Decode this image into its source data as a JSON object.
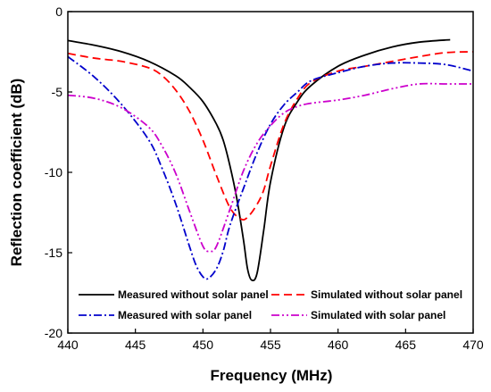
{
  "chart_data": {
    "type": "line",
    "xlabel": "Frequency (MHz)",
    "ylabel": "Reflection coefficient (dB)",
    "xlim": [
      440,
      470
    ],
    "ylim": [
      -20,
      0
    ],
    "xticks": [
      "440",
      "445",
      "450",
      "455",
      "460",
      "465",
      "470"
    ],
    "yticks": [
      "0",
      "-5",
      "-10",
      "-15",
      "-20"
    ],
    "grid": false,
    "legend_position": "bottom",
    "series": [
      {
        "name": "Measured without solar panel",
        "color": "#000000",
        "dash": "solid",
        "x": [
          440,
          442,
          444,
          446,
          448,
          449,
          450,
          451,
          451.5,
          452,
          452.5,
          453,
          453.3,
          453.6,
          454,
          454.5,
          455,
          456,
          457,
          458,
          460,
          462,
          464,
          466,
          468.3
        ],
        "y": [
          -1.8,
          -2.1,
          -2.5,
          -3.1,
          -4.0,
          -4.7,
          -5.6,
          -7.0,
          -8.0,
          -9.6,
          -11.6,
          -14.2,
          -16.0,
          -16.7,
          -16.3,
          -13.6,
          -10.6,
          -7.2,
          -5.6,
          -4.6,
          -3.4,
          -2.7,
          -2.2,
          -1.9,
          -1.75
        ]
      },
      {
        "name": "Simulated without solar panel",
        "color": "#ff0000",
        "dash": "dashed",
        "x": [
          440,
          442,
          444,
          446,
          447,
          448,
          449,
          450,
          451,
          452,
          452.8,
          453.3,
          454,
          454.5,
          455,
          456,
          457,
          458,
          460,
          462,
          464,
          466,
          468,
          470
        ],
        "y": [
          -2.6,
          -2.9,
          -3.1,
          -3.5,
          -4.0,
          -4.9,
          -6.2,
          -8.0,
          -10.2,
          -12.2,
          -12.9,
          -12.8,
          -12.0,
          -11.1,
          -9.6,
          -7.0,
          -5.4,
          -4.4,
          -3.7,
          -3.4,
          -3.1,
          -2.8,
          -2.55,
          -2.5
        ]
      },
      {
        "name": "Measured with solar panel",
        "color": "#0000cc",
        "dash": "dashdot",
        "x": [
          440,
          442,
          444,
          446,
          447,
          448,
          449,
          449.5,
          450,
          450.4,
          451,
          451.5,
          452,
          453,
          454,
          455,
          456,
          457,
          458,
          460,
          462,
          464,
          466,
          468,
          470
        ],
        "y": [
          -2.8,
          -4.1,
          -5.8,
          -8.0,
          -9.8,
          -12.0,
          -14.6,
          -15.8,
          -16.5,
          -16.6,
          -16.0,
          -14.9,
          -13.3,
          -11.0,
          -8.8,
          -7.0,
          -5.8,
          -5.0,
          -4.3,
          -3.8,
          -3.4,
          -3.2,
          -3.2,
          -3.3,
          -3.7
        ]
      },
      {
        "name": "Simulated with solar panel",
        "color": "#cc00cc",
        "dash": "dashdotdot",
        "x": [
          440,
          442,
          444,
          446,
          447,
          448,
          449,
          450,
          450.5,
          451,
          452,
          453,
          454,
          455,
          456,
          457,
          458,
          460,
          462,
          464,
          466,
          468,
          470
        ],
        "y": [
          -5.2,
          -5.4,
          -6.0,
          -7.2,
          -8.4,
          -10.1,
          -12.4,
          -14.6,
          -14.9,
          -14.6,
          -12.3,
          -9.9,
          -8.2,
          -7.1,
          -6.3,
          -5.9,
          -5.7,
          -5.5,
          -5.2,
          -4.8,
          -4.5,
          -4.5,
          -4.5
        ]
      }
    ]
  }
}
